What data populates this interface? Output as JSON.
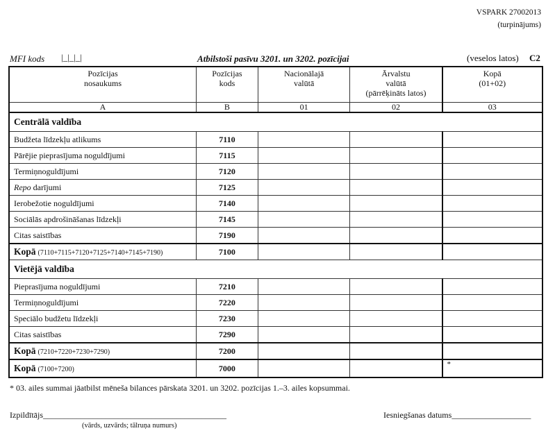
{
  "header": {
    "form_code": "VSPARK 27002013",
    "continuation": "(turpinājums)",
    "mfi_label": "MFI kods",
    "mfi_boxes": "|_|_|_|",
    "title": "Atbilstoši pasīvu 3201. un 3202. pozīcijai",
    "units": "(veselos latos)",
    "section_code": "C2"
  },
  "columns": [
    {
      "h1": "Pozīcijas",
      "h2": "nosaukums",
      "h3": "",
      "letter": "A"
    },
    {
      "h1": "Pozīcijas",
      "h2": "kods",
      "h3": "",
      "letter": "B"
    },
    {
      "h1": "Nacionālajā",
      "h2": "valūtā",
      "h3": "",
      "letter": "01"
    },
    {
      "h1": "Ārvalstu",
      "h2": "valūtā",
      "h3": "(pārrēķināts latos)",
      "letter": "02"
    },
    {
      "h1": "Kopā",
      "h2": "(01+02)",
      "h3": "",
      "letter": "03"
    }
  ],
  "central": {
    "title": "Centrālā valdība",
    "rows": [
      {
        "name": "Budžeta līdzekļu atlikums",
        "code": "7110"
      },
      {
        "name": "Pārējie pieprasījuma noguldījumi",
        "code": "7115"
      },
      {
        "name": "Termiņnoguldījumi",
        "code": "7120"
      },
      {
        "name": "Repo",
        "name_suffix": " darījumi",
        "code": "7125"
      },
      {
        "name": "Ierobežotie noguldījumi",
        "code": "7140"
      },
      {
        "name": "Sociālās apdrošināšanas līdzekļi",
        "code": "7145"
      },
      {
        "name": "Citas saistības",
        "code": "7190"
      }
    ],
    "total": {
      "label": "Kopā",
      "formula": "(7110+7115+7120+7125+7140+7145+7190)",
      "code": "7100"
    }
  },
  "local": {
    "title": "Vietējā valdība",
    "rows": [
      {
        "name": "Pieprasījuma noguldījumi",
        "code": "7210"
      },
      {
        "name": "Termiņnoguldījumi",
        "code": "7220"
      },
      {
        "name": "Speciālo budžetu līdzekļi",
        "code": "7230"
      },
      {
        "name": "Citas saistības",
        "code": "7290"
      }
    ],
    "total": {
      "label": "Kopā",
      "formula": "(7210+7220+7230+7290)",
      "code": "7200"
    }
  },
  "grand_total": {
    "label": "Kopā",
    "formula": "(7100+7200)",
    "code": "7000",
    "mark": "*"
  },
  "footer": {
    "note": "* 03. ailes summai jāatbilst mēneša bilances pārskata 3201. un 3202. pozīcijas 1.–3. ailes kopsummai.",
    "executor_label": "Izpildītājs",
    "executor_line": "____________________________________________",
    "executor_caption": "(vārds, uzvārds; tālruņa numurs)",
    "date_label": "Iesniegšanas datums",
    "date_line": "___________________"
  }
}
